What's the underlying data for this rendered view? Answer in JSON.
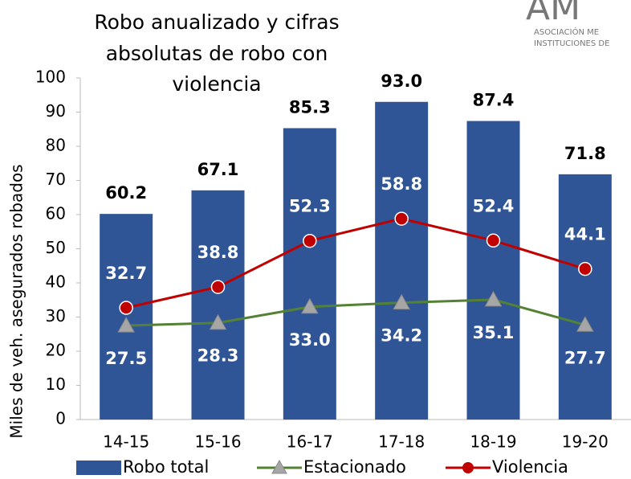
{
  "chart_data": {
    "type": "bar-line",
    "title": [
      "Robo anualizado y cifras",
      "absolutas de robo con",
      "violencia"
    ],
    "logo": [
      "AM",
      "ASOCIACIÓN ME",
      "INSTITUCIONES DE"
    ],
    "y_label": "Miles de veh. asegurados robados",
    "categories": [
      "14-15",
      "15-16",
      "16-17",
      "17-18",
      "18-19",
      "19-20"
    ],
    "ylim": [
      0,
      100
    ],
    "yticks": [
      0,
      10,
      20,
      30,
      40,
      50,
      60,
      70,
      80,
      90,
      100
    ],
    "grid": false,
    "legend": "bottom",
    "series": [
      {
        "name": "Robo total",
        "type": "bar",
        "color": "#2f5597",
        "values": [
          60.2,
          67.1,
          85.3,
          93.0,
          87.4,
          71.8
        ],
        "value_labels": [
          "60.2",
          "67.1",
          "85.3",
          "93.0",
          "87.4",
          "71.8"
        ]
      },
      {
        "name": "Estacionado",
        "type": "line",
        "color": "#548235",
        "marker": "triangle",
        "marker_color": "#a6a6a6",
        "values": [
          27.5,
          28.3,
          33.0,
          34.2,
          35.1,
          27.7
        ],
        "value_labels": [
          "27.5",
          "28.3",
          "33.0",
          "34.2",
          "35.1",
          "27.7"
        ]
      },
      {
        "name": "Violencia",
        "type": "line",
        "color": "#c00000",
        "marker": "circle",
        "marker_color": "#c00000",
        "values": [
          32.7,
          38.8,
          52.3,
          58.8,
          52.4,
          44.1
        ],
        "value_labels": [
          "32.7",
          "38.8",
          "52.3",
          "58.8",
          "52.4",
          "44.1"
        ]
      }
    ]
  }
}
